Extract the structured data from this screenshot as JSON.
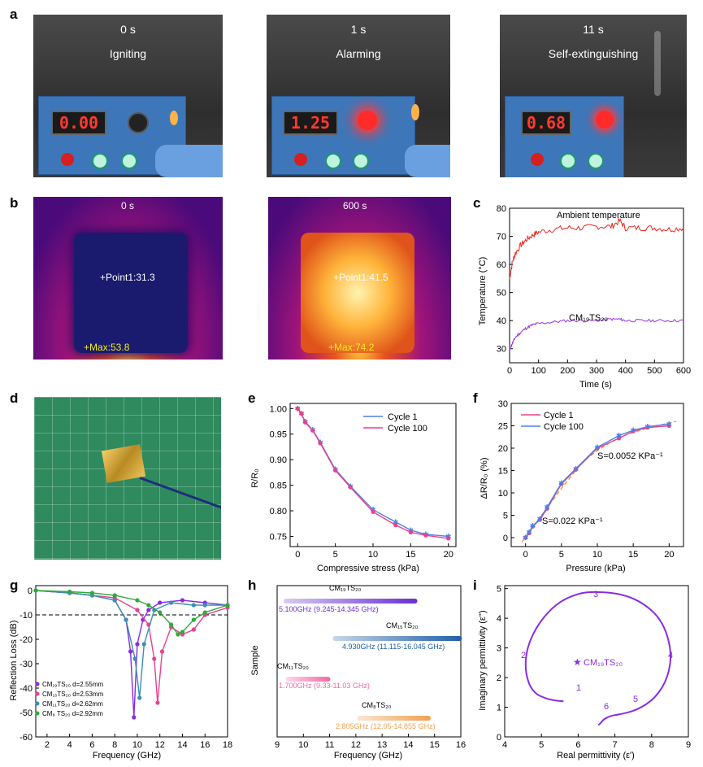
{
  "panels": {
    "a": "a",
    "b": "b",
    "c": "c",
    "d": "d",
    "e": "e",
    "f": "f",
    "g": "g",
    "h": "h",
    "i": "i"
  },
  "photos_a": [
    {
      "time": "0 s",
      "state": "Igniting",
      "display": "0.00"
    },
    {
      "time": "1 s",
      "state": "Alarming",
      "display": "1.25"
    },
    {
      "time": "11 s",
      "state": "Self-extinguishing",
      "display": "0.68"
    }
  ],
  "thermal_b": [
    {
      "time": "0 s",
      "point": "+Point1:31.3",
      "max": "+Max:53.8"
    },
    {
      "time": "600 s",
      "point": "+Point1:41.5",
      "max": "+Max:74.2"
    }
  ],
  "colors": {
    "ambient": "#e8261f",
    "sample": "#9b30e0",
    "cycle1": "#4f7fe6",
    "cycle100": "#e8418f",
    "fit": "#f0933a"
  },
  "chart_data": [
    {
      "id": "c",
      "type": "line",
      "xlabel": "Time (s)",
      "ylabel": "Temperature (°C)",
      "xlim": [
        0,
        600
      ],
      "ylim": [
        25,
        80
      ],
      "xticks": [
        0,
        100,
        200,
        300,
        400,
        500,
        600
      ],
      "yticks": [
        30,
        40,
        50,
        60,
        70,
        80
      ],
      "annotations": [
        {
          "text": "Ambient temperature"
        },
        {
          "text": "CM₁₉TS₂₀"
        }
      ],
      "series": [
        {
          "x": [
            0,
            10,
            20,
            40,
            60,
            80,
            100,
            150,
            200,
            250,
            300,
            350,
            380,
            400,
            450,
            500,
            550,
            600
          ],
          "y": [
            55,
            61,
            64,
            67,
            69,
            70.5,
            71.5,
            72.5,
            73,
            73,
            73.5,
            73.5,
            75.5,
            73,
            73,
            73,
            72.5,
            73
          ]
        },
        {
          "x": [
            0,
            10,
            20,
            40,
            60,
            80,
            100,
            150,
            200,
            250,
            300,
            350,
            380,
            400,
            450,
            500,
            550,
            600
          ],
          "y": [
            29.5,
            32,
            34,
            36,
            37.5,
            38.5,
            39,
            39.5,
            40,
            40,
            40,
            40.5,
            40.5,
            40,
            40,
            40,
            40,
            40
          ]
        }
      ]
    },
    {
      "id": "e",
      "type": "line",
      "xlabel": "Compressive stress (kPa)",
      "ylabel": "R/R₀",
      "xlim": [
        -1,
        21
      ],
      "ylim": [
        0.73,
        1.01
      ],
      "xticks": [
        0,
        5,
        10,
        15,
        20
      ],
      "yticks": [
        0.75,
        0.8,
        0.85,
        0.9,
        0.95,
        1.0
      ],
      "legend": [
        "Cycle 1",
        "Cycle 100"
      ],
      "series": [
        {
          "name": "Cycle 1",
          "x": [
            0,
            0.5,
            1,
            2,
            3,
            5,
            7,
            10,
            13,
            15,
            17,
            20
          ],
          "y": [
            1.0,
            0.99,
            0.974,
            0.958,
            0.934,
            0.881,
            0.848,
            0.802,
            0.778,
            0.762,
            0.754,
            0.75
          ]
        },
        {
          "name": "Cycle 100",
          "x": [
            0,
            0.5,
            1,
            2,
            3,
            5,
            7,
            10,
            13,
            15,
            17,
            20
          ],
          "y": [
            1.0,
            0.99,
            0.973,
            0.957,
            0.932,
            0.879,
            0.846,
            0.798,
            0.772,
            0.758,
            0.752,
            0.746
          ]
        }
      ]
    },
    {
      "id": "f",
      "type": "line",
      "xlabel": "Pressure (kPa)",
      "ylabel": "ΔR/R₀ (%)",
      "xlim": [
        -2,
        22
      ],
      "ylim": [
        -2,
        30
      ],
      "xticks": [
        0,
        5,
        10,
        15,
        20
      ],
      "yticks": [
        0,
        5,
        10,
        15,
        20,
        25,
        30
      ],
      "legend": [
        "Cycle 1",
        "Cycle 100"
      ],
      "annotations": [
        {
          "text": "S=0.0052 KPa⁻¹"
        },
        {
          "text": "S=0.022 KPa⁻¹"
        }
      ],
      "series": [
        {
          "name": "Cycle 1",
          "x": [
            0,
            0.5,
            1,
            2,
            3,
            5,
            7,
            10,
            13,
            15,
            17,
            20
          ],
          "y": [
            0,
            1,
            2.5,
            4,
            6.5,
            12,
            15.2,
            20,
            22.2,
            23.8,
            24.6,
            25
          ]
        },
        {
          "name": "Cycle 100",
          "x": [
            0,
            0.5,
            1,
            2,
            3,
            5,
            7,
            10,
            13,
            15,
            17,
            20
          ],
          "y": [
            0,
            1.2,
            2.6,
            4.2,
            6.8,
            12.2,
            15.4,
            20.2,
            22.8,
            24,
            24.8,
            25.4
          ]
        },
        {
          "name": "fit",
          "x": [
            -0.5,
            2,
            5,
            8,
            10,
            12,
            14,
            17,
            21
          ],
          "y": [
            -1,
            4.5,
            11,
            17,
            19.5,
            21.5,
            23,
            24.5,
            26
          ]
        }
      ]
    },
    {
      "id": "g",
      "type": "line",
      "xlabel": "Frequency (GHz)",
      "ylabel": "Reflection Loss (dB)",
      "xlim": [
        1,
        18
      ],
      "ylim": [
        -60,
        2
      ],
      "xticks": [
        2,
        4,
        6,
        8,
        10,
        12,
        14,
        16,
        18
      ],
      "yticks": [
        0,
        -10,
        -20,
        -30,
        -40,
        -50,
        -60
      ],
      "reference_line": -10,
      "legend": [
        "CM₁₉TS₂₀ d=2.55mm",
        "CM₁₅TS₂₀ d=2.53mm",
        "CM₁₁TS₂₀ d=2.62mm",
        "CM₈ TS₂₀ d=2.92mm"
      ],
      "series": [
        {
          "name": "CM19",
          "x": [
            1,
            4,
            6,
            8,
            9,
            9.4,
            9.7,
            10,
            10.5,
            11,
            12,
            14,
            16,
            18
          ],
          "y": [
            0,
            -1,
            -2,
            -4,
            -12,
            -25,
            -52,
            -22,
            -12,
            -8,
            -5,
            -4,
            -5,
            -6
          ]
        },
        {
          "name": "CM15",
          "x": [
            1,
            4,
            6,
            8,
            10,
            11,
            11.5,
            11.8,
            12.2,
            13,
            14,
            15,
            16,
            18
          ],
          "y": [
            0,
            -1,
            -2,
            -3,
            -8,
            -14,
            -28,
            -46,
            -25,
            -15,
            -18,
            -16,
            -10,
            -7
          ]
        },
        {
          "name": "CM11",
          "x": [
            1,
            4,
            6,
            8,
            9,
            9.8,
            10.2,
            10.6,
            11.5,
            13,
            15,
            16,
            18
          ],
          "y": [
            0,
            -1,
            -2,
            -4,
            -12,
            -28,
            -44,
            -22,
            -8,
            -5,
            -6,
            -6,
            -6
          ]
        },
        {
          "name": "CM8",
          "x": [
            1,
            4,
            6,
            8,
            10,
            11,
            12,
            13,
            13.6,
            14,
            15,
            16,
            18
          ],
          "y": [
            0,
            -0.5,
            -1,
            -2,
            -4,
            -6,
            -9,
            -14,
            -18,
            -17,
            -12,
            -9,
            -6
          ]
        }
      ]
    },
    {
      "id": "h",
      "type": "bar",
      "xlabel": "Frequency (GHz)",
      "ylabel": "Sample",
      "xlim": [
        9,
        16
      ],
      "xticks": [
        9,
        10,
        11,
        12,
        13,
        14,
        15,
        16
      ],
      "bars": [
        {
          "name": "CM₁₉TS₂₀",
          "start": 9.245,
          "end": 14.345,
          "label": "5.100GHz (9.245-14.345 GHz)",
          "color": "#6a2fd0"
        },
        {
          "name": "CM₁₅TS₂₀",
          "start": 11.115,
          "end": 16.045,
          "label": "4.930GHz (11.115-16.045 GHz)",
          "color": "#1f5fa8"
        },
        {
          "name": "CM₁₁TS₂₀",
          "start": 9.33,
          "end": 11.03,
          "label": "1.700GHz (9.33-11.03 GHz)",
          "color": "#f06aa8"
        },
        {
          "name": "CM₈TS₂₀",
          "start": 12.05,
          "end": 14.855,
          "label": "2.805GHz (12.05-14.855 GHz)",
          "color": "#f0a050"
        }
      ]
    },
    {
      "id": "i",
      "type": "line",
      "xlabel": "Real permittivity (ε')",
      "ylabel": "Imaginary permittivity (ε'')",
      "xlim": [
        4,
        9
      ],
      "ylim": [
        0,
        5.1
      ],
      "xticks": [
        4,
        5,
        6,
        7,
        8,
        9
      ],
      "yticks": [
        0,
        1,
        2,
        3,
        4,
        5
      ],
      "annotations": [
        {
          "text": "CM₁₉TS₂₀"
        },
        {
          "text": "1"
        },
        {
          "text": "2"
        },
        {
          "text": "3"
        },
        {
          "text": "4"
        },
        {
          "text": "5"
        },
        {
          "text": "6"
        }
      ],
      "series": [
        {
          "x": [
            5.6,
            5.2,
            4.75,
            4.55,
            4.6,
            4.9,
            5.4,
            6.0,
            6.5,
            7.2,
            7.8,
            8.3,
            8.55,
            8.45,
            8.1,
            7.6,
            7.1,
            6.9,
            6.7,
            6.6,
            6.55
          ],
          "y": [
            1.2,
            1.25,
            1.5,
            2.2,
            3.0,
            3.8,
            4.5,
            4.85,
            4.9,
            4.82,
            4.5,
            3.9,
            2.9,
            2.0,
            1.3,
            0.9,
            0.75,
            0.72,
            0.6,
            0.45,
            0.4
          ]
        }
      ]
    }
  ]
}
